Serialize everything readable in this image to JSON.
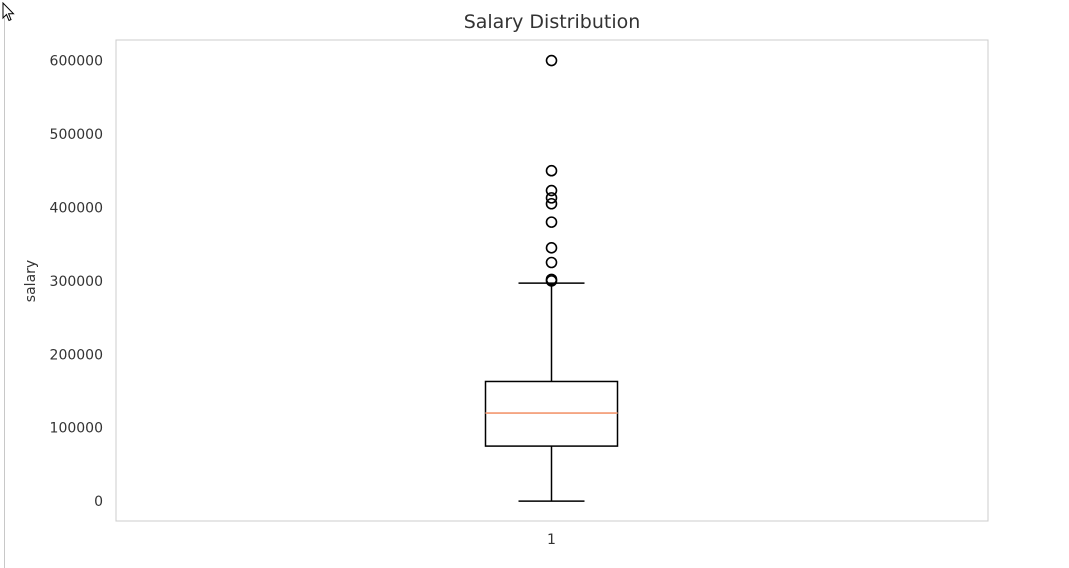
{
  "chart_data": {
    "type": "box",
    "title": "Salary Distribution",
    "xlabel": "",
    "ylabel": "salary",
    "categories": [
      "1"
    ],
    "ylim": [
      -27000,
      628000
    ],
    "yticks": [
      0,
      100000,
      200000,
      300000,
      400000,
      500000,
      600000
    ],
    "ytick_labels": [
      "0",
      "100000",
      "200000",
      "300000",
      "400000",
      "500000",
      "600000"
    ],
    "grid": false,
    "boxes": [
      {
        "category": "1",
        "whisker_low": 0,
        "q1": 75000,
        "median": 120000,
        "q3": 163000,
        "whisker_high": 297000,
        "outliers": [
          300000,
          302000,
          325000,
          345000,
          380000,
          405000,
          413000,
          423000,
          450000,
          600000
        ]
      }
    ],
    "colors": {
      "median": "#f4a582",
      "box": "#000000",
      "frame": "#cccccc",
      "text": "#333333"
    }
  }
}
